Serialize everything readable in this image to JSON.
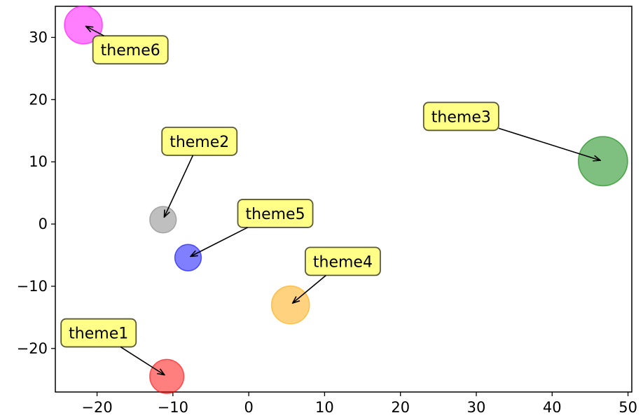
{
  "chart_data": {
    "type": "scatter",
    "title": "",
    "xlabel": "",
    "ylabel": "",
    "xlim": [
      -25.5,
      50.5
    ],
    "ylim": [
      -27,
      35
    ],
    "xticks": [
      -20,
      -10,
      0,
      10,
      20,
      30,
      40,
      50
    ],
    "yticks": [
      -20,
      -10,
      0,
      10,
      20,
      30
    ],
    "xtick_labels": [
      "−20",
      "−10",
      "0",
      "10",
      "20",
      "30",
      "40",
      "50"
    ],
    "ytick_labels": [
      "−20",
      "−10",
      "0",
      "10",
      "20",
      "30"
    ],
    "grid": false,
    "annotation_box_color": "#ffff7a",
    "points": [
      {
        "label": "theme1",
        "x": -10.8,
        "y": -24.5,
        "size": 4.5,
        "color": "#ff0000",
        "label_x": -19.8,
        "label_y": -17.5
      },
      {
        "label": "theme2",
        "x": -11.3,
        "y": 0.7,
        "size": 3.5,
        "color": "#808080",
        "label_x": -6.5,
        "label_y": 13.3
      },
      {
        "label": "theme3",
        "x": 46.7,
        "y": 10.1,
        "size": 6.5,
        "color": "#008000",
        "label_x": 28.0,
        "label_y": 17.3
      },
      {
        "label": "theme4",
        "x": 5.5,
        "y": -13.0,
        "size": 5.0,
        "color": "#ffa500",
        "label_x": 12.4,
        "label_y": -6.0
      },
      {
        "label": "theme5",
        "x": -8.0,
        "y": -5.4,
        "size": 3.5,
        "color": "#0000ff",
        "label_x": 3.5,
        "label_y": 1.7
      },
      {
        "label": "theme6",
        "x": -21.8,
        "y": 32.0,
        "size": 5.0,
        "color": "#ff00ff",
        "label_x": -15.6,
        "label_y": 28.0
      }
    ]
  }
}
